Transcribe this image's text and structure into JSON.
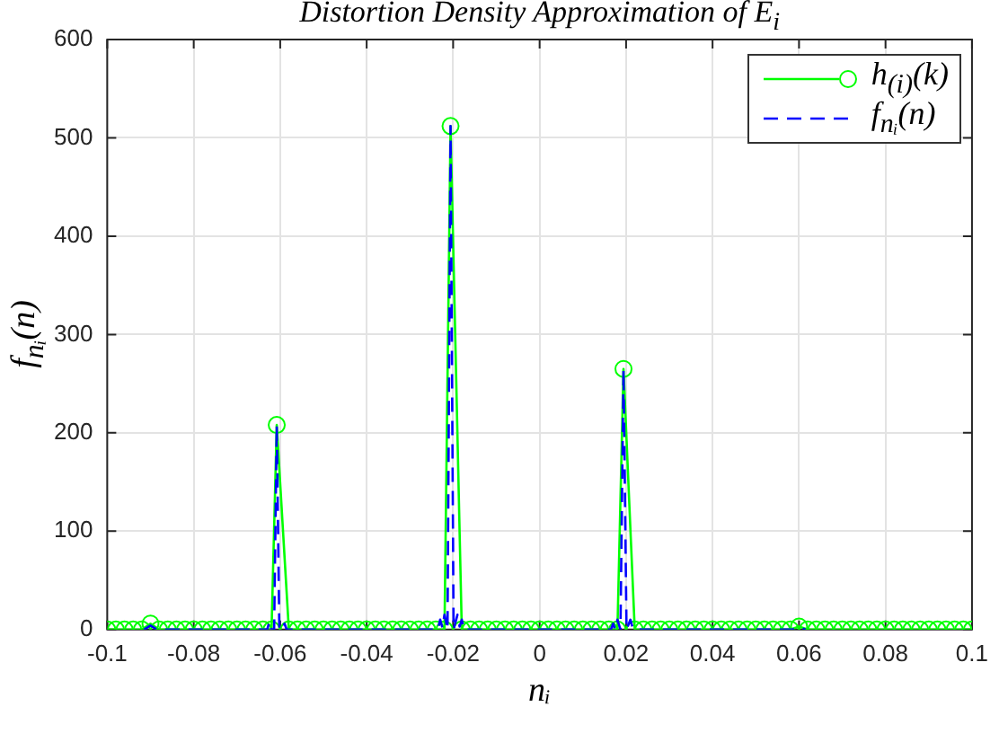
{
  "chart_data": {
    "type": "line",
    "title": "Distortion Density Approximation of E$_{i}$",
    "xlabel": "nᵢ",
    "ylabel": "f$_{nᵢ}$(n)",
    "xlim": [
      -0.1,
      0.1
    ],
    "xticks": [
      -0.1,
      -0.08,
      -0.06,
      -0.04,
      -0.02,
      0,
      0.02,
      0.04,
      0.06,
      0.08,
      0.1
    ],
    "ylim": [
      0,
      600
    ],
    "yticks": [
      0,
      100,
      200,
      300,
      400,
      500,
      600
    ],
    "grid": true,
    "legend": "top right",
    "series": [
      {
        "name": "h$_{(i)}$(k)",
        "color": "#00ff00",
        "marker": "circle",
        "line_style": "solid",
        "x": [
          -0.1,
          -0.098,
          -0.096,
          -0.094,
          -0.092,
          -0.09,
          -0.088,
          -0.086,
          -0.084,
          -0.082,
          -0.08,
          -0.078,
          -0.076,
          -0.074,
          -0.072,
          -0.07,
          -0.068,
          -0.066,
          -0.064,
          -0.062,
          -0.0608,
          -0.058,
          -0.056,
          -0.054,
          -0.052,
          -0.05,
          -0.048,
          -0.046,
          -0.044,
          -0.042,
          -0.04,
          -0.038,
          -0.036,
          -0.034,
          -0.032,
          -0.03,
          -0.028,
          -0.026,
          -0.024,
          -0.022,
          -0.0206,
          -0.018,
          -0.016,
          -0.014,
          -0.012,
          -0.01,
          -0.008,
          -0.006,
          -0.004,
          -0.002,
          0,
          0.002,
          0.004,
          0.006,
          0.008,
          0.01,
          0.012,
          0.014,
          0.016,
          0.018,
          0.0194,
          0.022,
          0.024,
          0.026,
          0.028,
          0.03,
          0.032,
          0.034,
          0.036,
          0.038,
          0.04,
          0.042,
          0.044,
          0.046,
          0.048,
          0.05,
          0.052,
          0.054,
          0.056,
          0.058,
          0.06,
          0.062,
          0.064,
          0.066,
          0.068,
          0.07,
          0.072,
          0.074,
          0.076,
          0.078,
          0.08,
          0.082,
          0.084,
          0.086,
          0.088,
          0.09,
          0.092,
          0.094,
          0.096,
          0.098,
          0.1
        ],
        "values": [
          0,
          0,
          0,
          0,
          0,
          6,
          0,
          0,
          0,
          0,
          0,
          0,
          0,
          0,
          0,
          0,
          0,
          0,
          0,
          0,
          208,
          0,
          0,
          0,
          0,
          0,
          0,
          0,
          0,
          0,
          0,
          0,
          0,
          0,
          0,
          0,
          0,
          0,
          0,
          0,
          512,
          0,
          0,
          0,
          0,
          0,
          0,
          0,
          0,
          0,
          0,
          0,
          0,
          0,
          0,
          0,
          0,
          0,
          0,
          0,
          265,
          0,
          0,
          0,
          0,
          0,
          0,
          0,
          0,
          0,
          0,
          0,
          0,
          0,
          0,
          0,
          0,
          0,
          0,
          0,
          3,
          0,
          0,
          0,
          0,
          0,
          0,
          0,
          0,
          0,
          0,
          0,
          0,
          0,
          0,
          0,
          0,
          0,
          0,
          0,
          0
        ]
      },
      {
        "name": "f$_{nᵢ}$(n)",
        "color": "#0000ff",
        "marker": "none",
        "line_style": "dashed",
        "x": [
          -0.0915,
          -0.09,
          -0.0885,
          -0.063,
          -0.0625,
          -0.062,
          -0.0614,
          -0.0608,
          -0.0602,
          -0.0595,
          -0.059,
          -0.0585,
          -0.0235,
          -0.023,
          -0.0225,
          -0.022,
          -0.0213,
          -0.0206,
          -0.0199,
          -0.019,
          -0.0185,
          -0.018,
          -0.0175,
          0.0165,
          0.017,
          0.0175,
          0.018,
          0.0187,
          0.0194,
          0.0201,
          0.021,
          0.0215,
          0.022,
          0.0585,
          0.06,
          0.0615
        ],
        "values": [
          0,
          4,
          0,
          0,
          8,
          0,
          0,
          208,
          0,
          0,
          6,
          0,
          0,
          10,
          2,
          15,
          0,
          512,
          0,
          15,
          3,
          10,
          0,
          0,
          6,
          0,
          10,
          0,
          265,
          0,
          10,
          2,
          0,
          0,
          2,
          0
        ]
      }
    ]
  }
}
